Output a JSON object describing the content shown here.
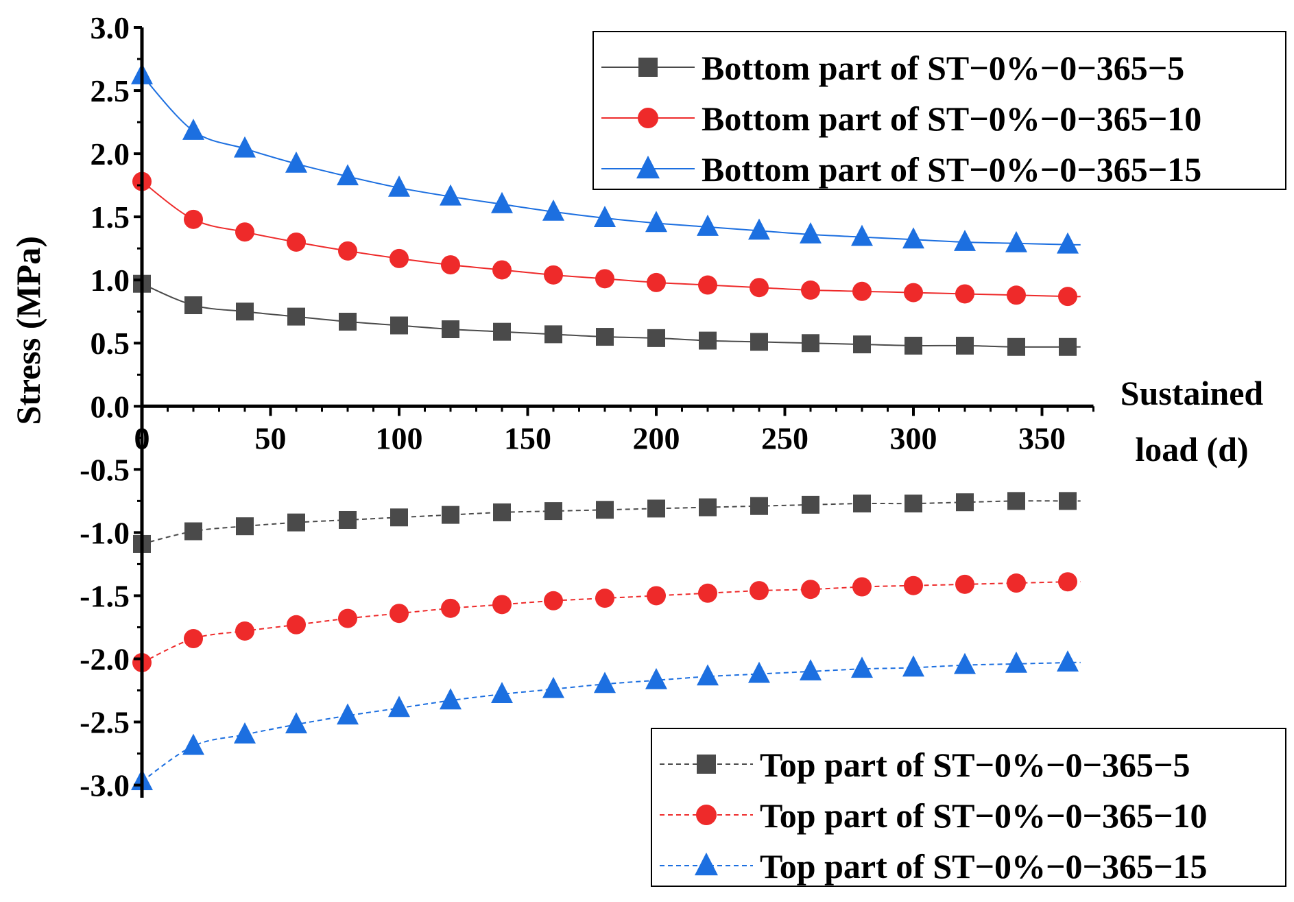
{
  "chart_data": {
    "type": "line",
    "title": "",
    "xlabel_line1": "Sustained",
    "xlabel_line2": "load (d)",
    "ylabel": "Stress (MPa)",
    "xlim": [
      0,
      370
    ],
    "ylim": [
      -3.1,
      3.0
    ],
    "x_ticks": [
      0,
      50,
      100,
      150,
      200,
      250,
      300,
      350
    ],
    "x_tick_labels": [
      "0",
      "50",
      "100",
      "150",
      "200",
      "250",
      "300",
      "350"
    ],
    "y_ticks": [
      3.0,
      2.5,
      2.0,
      1.5,
      1.0,
      0.5,
      0.0,
      -0.5,
      -1.0,
      -1.5,
      -2.0,
      -2.5,
      -3.0
    ],
    "y_tick_labels": [
      "3.0",
      "2.5",
      "2.0",
      "1.5",
      "1.0",
      "0.5",
      "0.0",
      "-0.5",
      "-1.0",
      "-1.5",
      "-2.0",
      "-2.5",
      "-3.0"
    ],
    "grid": false,
    "x": [
      0,
      20,
      40,
      60,
      80,
      100,
      120,
      140,
      160,
      180,
      200,
      220,
      240,
      260,
      280,
      300,
      320,
      340,
      360
    ],
    "series": [
      {
        "name": "Bottom part of ST−0%−0−365−5",
        "color": "#4a4a4a",
        "marker": "square",
        "dash": "solid",
        "legend": "top",
        "values": [
          0.97,
          0.8,
          0.75,
          0.71,
          0.67,
          0.64,
          0.61,
          0.59,
          0.57,
          0.55,
          0.54,
          0.52,
          0.51,
          0.5,
          0.49,
          0.48,
          0.48,
          0.47,
          0.47
        ]
      },
      {
        "name": "Bottom part of ST−0%−0−365−10",
        "color": "#ee2a2a",
        "marker": "circle",
        "dash": "solid",
        "legend": "top",
        "values": [
          1.78,
          1.48,
          1.38,
          1.3,
          1.23,
          1.17,
          1.12,
          1.08,
          1.04,
          1.01,
          0.98,
          0.96,
          0.94,
          0.92,
          0.91,
          0.9,
          0.89,
          0.88,
          0.87
        ]
      },
      {
        "name": "Bottom part of ST−0%−0−365−15",
        "color": "#1c6fe0",
        "marker": "triangle",
        "dash": "solid",
        "legend": "top",
        "values": [
          2.62,
          2.18,
          2.04,
          1.92,
          1.82,
          1.73,
          1.66,
          1.6,
          1.54,
          1.49,
          1.45,
          1.42,
          1.39,
          1.36,
          1.34,
          1.32,
          1.3,
          1.29,
          1.28
        ]
      },
      {
        "name": "Top part of ST−0%−0−365−5",
        "color": "#4a4a4a",
        "marker": "square",
        "dash": "dashed",
        "legend": "bottom",
        "values": [
          -1.09,
          -0.99,
          -0.95,
          -0.92,
          -0.9,
          -0.88,
          -0.86,
          -0.84,
          -0.83,
          -0.82,
          -0.81,
          -0.8,
          -0.79,
          -0.78,
          -0.77,
          -0.77,
          -0.76,
          -0.75,
          -0.75
        ]
      },
      {
        "name": "Top part of ST−0%−0−365−10",
        "color": "#ee2a2a",
        "marker": "circle",
        "dash": "dashed",
        "legend": "bottom",
        "values": [
          -2.03,
          -1.84,
          -1.78,
          -1.73,
          -1.68,
          -1.64,
          -1.6,
          -1.57,
          -1.54,
          -1.52,
          -1.5,
          -1.48,
          -1.46,
          -1.45,
          -1.43,
          -1.42,
          -1.41,
          -1.4,
          -1.39
        ]
      },
      {
        "name": "Top part of ST−0%−0−365−15",
        "color": "#1c6fe0",
        "marker": "triangle",
        "dash": "dashed",
        "legend": "bottom",
        "values": [
          -2.97,
          -2.69,
          -2.6,
          -2.52,
          -2.45,
          -2.39,
          -2.33,
          -2.28,
          -2.24,
          -2.2,
          -2.17,
          -2.14,
          -2.12,
          -2.1,
          -2.08,
          -2.07,
          -2.05,
          -2.04,
          -2.03
        ]
      }
    ]
  }
}
